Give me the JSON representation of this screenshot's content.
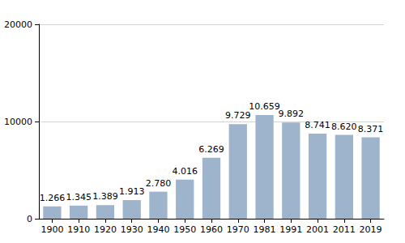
{
  "chart_data": {
    "type": "bar",
    "categories": [
      "1900",
      "1910",
      "1920",
      "1930",
      "1940",
      "1950",
      "1960",
      "1970",
      "1981",
      "1991",
      "2001",
      "2011",
      "2019"
    ],
    "values": [
      1266,
      1345,
      1389,
      1913,
      2780,
      4016,
      6269,
      9729,
      10659,
      9892,
      8741,
      8620,
      8371
    ],
    "value_labels": [
      "1.266",
      "1.345",
      "1.389",
      "1.913",
      "2.780",
      "4.016",
      "6.269",
      "9.729",
      "10.659",
      "9.892",
      "8.741",
      "8.620",
      "8.371"
    ],
    "color": "#9db4cc",
    "ylim": [
      0,
      20000
    ],
    "yticks": [
      0,
      10000,
      20000
    ],
    "grid": true,
    "data_labels": true
  }
}
